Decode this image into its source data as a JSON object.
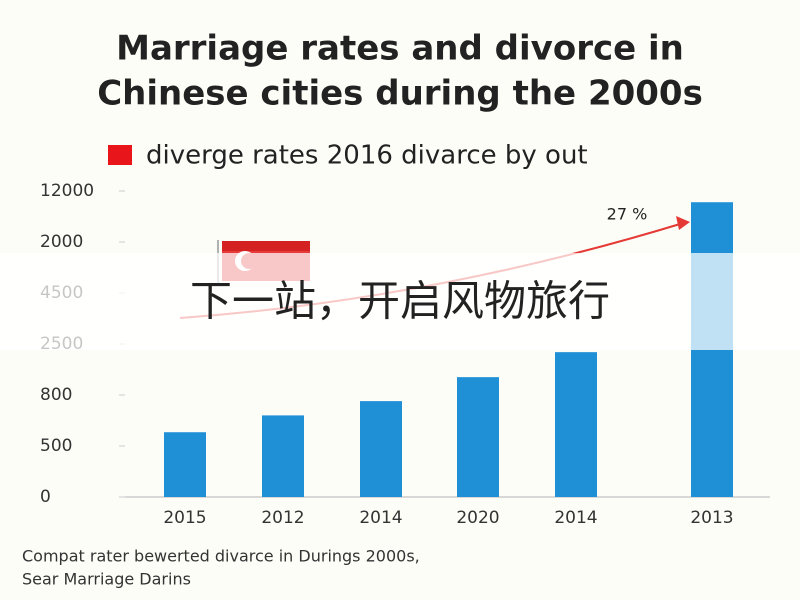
{
  "chart_data": {
    "type": "bar",
    "title": [
      "Marriage rates and divorce in",
      "Chinese cities during the 2000s"
    ],
    "legend": {
      "label": "diverge rates 2016 divarce by out",
      "color": "#e8161b"
    },
    "categories": [
      "2015",
      "2012",
      "2014",
      "2020",
      "2014",
      "2013"
    ],
    "values": [
      1.27,
      1.6,
      1.88,
      2.35,
      2.84,
      5.78
    ],
    "color": "#1f8fd6",
    "ylim": [
      0,
      6
    ],
    "yticks": [
      {
        "value": 0,
        "label": "0"
      },
      {
        "value": 1,
        "label": "500"
      },
      {
        "value": 2,
        "label": "800"
      },
      {
        "value": 3,
        "label": "2500"
      },
      {
        "value": 4,
        "label": "4500"
      },
      {
        "value": 5,
        "label": "2000"
      },
      {
        "value": 6,
        "label": "12000"
      }
    ],
    "annotation": "27 %",
    "footnote": [
      "Compat rater bewerted divarce in Durings 2000s,",
      "Sear Marriage Darins"
    ],
    "overlay_text": "下一站，开启风物旅行"
  }
}
